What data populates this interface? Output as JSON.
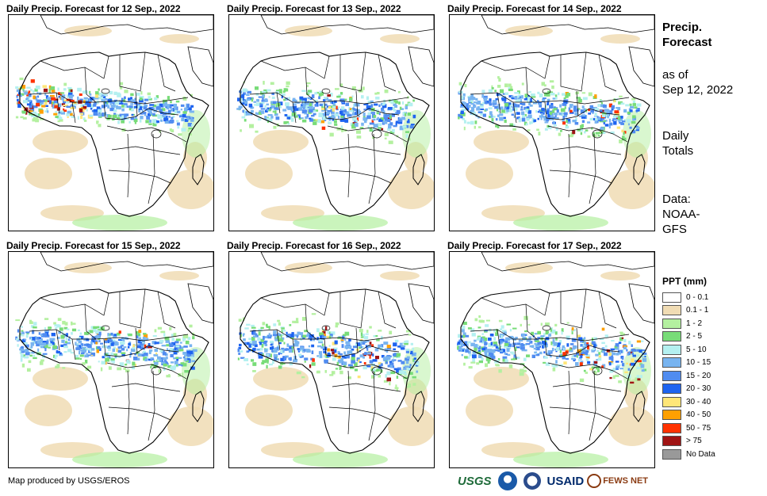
{
  "panels": [
    {
      "title": "Daily Precip. Forecast for 12 Sep., 2022",
      "rain": "heavy-west"
    },
    {
      "title": "Daily Precip. Forecast for 13 Sep., 2022",
      "rain": "moderate"
    },
    {
      "title": "Daily Precip. Forecast for 14 Sep., 2022",
      "rain": "moderate-east"
    },
    {
      "title": "Daily Precip. Forecast for 15 Sep., 2022",
      "rain": "moderate"
    },
    {
      "title": "Daily Precip. Forecast for 16 Sep., 2022",
      "rain": "moderate-center"
    },
    {
      "title": "Daily Precip. Forecast for 17 Sep., 2022",
      "rain": "heavy-east"
    }
  ],
  "side": {
    "title_line1": "Precip.",
    "title_line2": "Forecast",
    "asof_line1": "as of",
    "asof_line2": "Sep 12, 2022",
    "totals_line1": "Daily",
    "totals_line2": "Totals",
    "data_line1": "Data:",
    "data_line2": "NOAA-",
    "data_line3": "GFS"
  },
  "legend": {
    "title": "PPT (mm)",
    "items": [
      {
        "label": "0 - 0.1",
        "color": "#ffffff"
      },
      {
        "label": "0.1 - 1",
        "color": "#f0dcb4"
      },
      {
        "label": "1 - 2",
        "color": "#b4f0a0"
      },
      {
        "label": "2 - 5",
        "color": "#78dc78"
      },
      {
        "label": "5 - 10",
        "color": "#b4f0f0"
      },
      {
        "label": "10 - 15",
        "color": "#78b4f0"
      },
      {
        "label": "15 - 20",
        "color": "#508cf0"
      },
      {
        "label": "20 - 30",
        "color": "#1e64f0"
      },
      {
        "label": "30 - 40",
        "color": "#ffe678"
      },
      {
        "label": "40 - 50",
        "color": "#ffa000"
      },
      {
        "label": "50 - 75",
        "color": "#ff3200"
      },
      {
        "label": "> 75",
        "color": "#a01414"
      },
      {
        "label": "No Data",
        "color": "#999999"
      }
    ]
  },
  "credit": "Map produced by USGS/EROS",
  "logos": {
    "usgs": "USGS",
    "usaid": "USAID",
    "fews": "FEWS NET"
  }
}
